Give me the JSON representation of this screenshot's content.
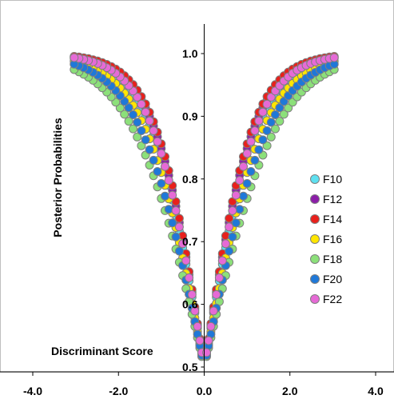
{
  "chart_data": {
    "type": "scatter",
    "title": "",
    "xlabel": "Discriminant Score",
    "ylabel": "Posterior Probabilities",
    "xlim": [
      -4.0,
      4.0
    ],
    "ylim": [
      0.5,
      1.05
    ],
    "x_ticks": [
      "-4.0",
      "-2.0",
      "0.0",
      "2.0",
      "4.0"
    ],
    "y_ticks": [
      "0.5",
      "0.6",
      "0.7",
      "0.8",
      "0.9",
      "1.0"
    ],
    "grid": false,
    "legend_position": "right",
    "series": [
      {
        "name": "F10",
        "color": "#5ee0f0",
        "k": 1.6
      },
      {
        "name": "F12",
        "color": "#8b1ea8",
        "k": 1.72
      },
      {
        "name": "F14",
        "color": "#e8201c",
        "k": 1.78
      },
      {
        "name": "F16",
        "color": "#ffe600",
        "k": 1.45
      },
      {
        "name": "F18",
        "color": "#8ce07a",
        "k": 1.2
      },
      {
        "name": "F20",
        "color": "#1f78d8",
        "k": 1.34
      },
      {
        "name": "F22",
        "color": "#e66ad6",
        "k": 1.66
      }
    ]
  }
}
